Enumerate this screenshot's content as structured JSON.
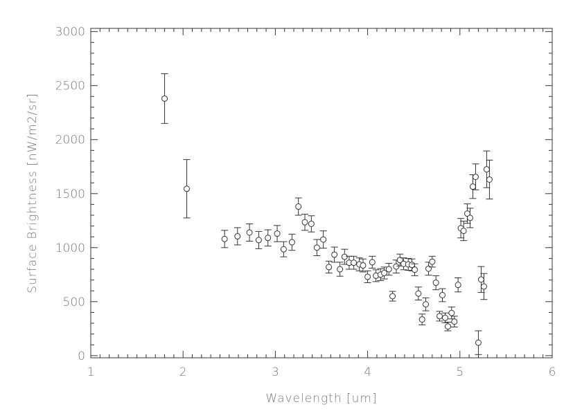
{
  "chart_data": {
    "type": "scatter",
    "title": "",
    "xlabel": "Wavelength [um]",
    "ylabel": "Surface Brightness [nW/m2/sr]",
    "xlim": [
      1,
      6
    ],
    "ylim": [
      -20,
      3030
    ],
    "xticks": [
      "1",
      "2",
      "3",
      "4",
      "5",
      "6"
    ],
    "yticks": [
      "0",
      "500",
      "1000",
      "1500",
      "2000",
      "2500",
      "3000"
    ],
    "grid": false,
    "marker": "open-circle-with-error-bars",
    "color": "#333333",
    "x": [
      1.8,
      2.04,
      2.45,
      2.59,
      2.72,
      2.82,
      2.92,
      3.02,
      3.09,
      3.18,
      3.25,
      3.32,
      3.39,
      3.45,
      3.52,
      3.58,
      3.64,
      3.7,
      3.75,
      3.8,
      3.85,
      3.91,
      3.95,
      4.0,
      4.05,
      4.09,
      4.14,
      4.18,
      4.23,
      4.27,
      4.31,
      4.35,
      4.39,
      4.44,
      4.48,
      4.51,
      4.55,
      4.59,
      4.63,
      4.66,
      4.7,
      4.74,
      4.78,
      4.81,
      4.84,
      4.87,
      4.91,
      4.94,
      4.98,
      5.01,
      5.04,
      5.08,
      5.11,
      5.14,
      5.17,
      5.2,
      5.23,
      5.26,
      5.29,
      5.32
    ],
    "y": [
      2380,
      1545,
      1080,
      1105,
      1140,
      1070,
      1090,
      1130,
      985,
      1050,
      1380,
      1235,
      1220,
      1000,
      1075,
      820,
      935,
      800,
      915,
      860,
      860,
      845,
      835,
      730,
      865,
      740,
      750,
      765,
      800,
      550,
      825,
      885,
      850,
      845,
      840,
      795,
      575,
      335,
      475,
      805,
      870,
      675,
      365,
      560,
      350,
      270,
      395,
      315,
      655,
      1180,
      1155,
      1315,
      1275,
      1565,
      1655,
      120,
      705,
      640,
      1725,
      1630
    ],
    "yerr": [
      230,
      270,
      80,
      80,
      80,
      80,
      75,
      75,
      70,
      75,
      80,
      75,
      75,
      75,
      80,
      55,
      70,
      65,
      70,
      60,
      60,
      60,
      60,
      55,
      55,
      55,
      55,
      55,
      55,
      45,
      60,
      55,
      55,
      55,
      55,
      55,
      60,
      50,
      60,
      60,
      50,
      65,
      45,
      60,
      45,
      40,
      55,
      50,
      65,
      90,
      90,
      90,
      90,
      110,
      120,
      110,
      120,
      120,
      170,
      180
    ]
  }
}
